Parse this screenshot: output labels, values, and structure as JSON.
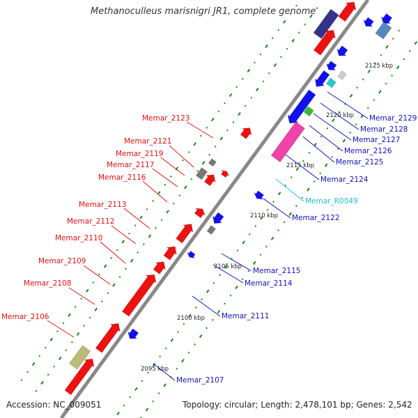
{
  "header": {
    "title": "Methanoculleus marisnigri JR1, complete genome"
  },
  "footer": {
    "accession": "Accession: NC_009051",
    "topology": "Topology: circular; Length: 2,478,101 bp; Genes: 2,542"
  },
  "colors": {
    "backbone": "#999999",
    "forward_gene": "#ee1111",
    "reverse_gene": "#1111ee",
    "other_gene": "#777777",
    "rna": "#22cccc",
    "pink_gene": "#ee44aa",
    "green_gene": "#33bb33",
    "olive_gene": "#bbbb77",
    "navy_gene": "#333388",
    "steel_gene": "#5588bb",
    "gc_dots": "#118811"
  },
  "scale": {
    "ticks": [
      "2095 kbp",
      "2100 kbp",
      "2105 kbp",
      "2110 kbp",
      "2115 kbp",
      "2120 kbp",
      "2125 kbp"
    ]
  },
  "labels_left": [
    "Memar_2123",
    "Memar_2121",
    "Memar_2119",
    "Memar_2117",
    "Memar_2116",
    "Memar_2113",
    "Memar_2112",
    "Memar_2110",
    "Memar_2109",
    "Memar_2108",
    "Memar_2106"
  ],
  "labels_right": [
    "Memar_2129",
    "Memar_2128",
    "Memar_2127",
    "Memar_2126",
    "Memar_2125",
    "Memar_2124",
    "Memar_R0049",
    "Memar_2122",
    "Memar_2115",
    "Memar_2114",
    "Memar_2111",
    "Memar_2107"
  ]
}
